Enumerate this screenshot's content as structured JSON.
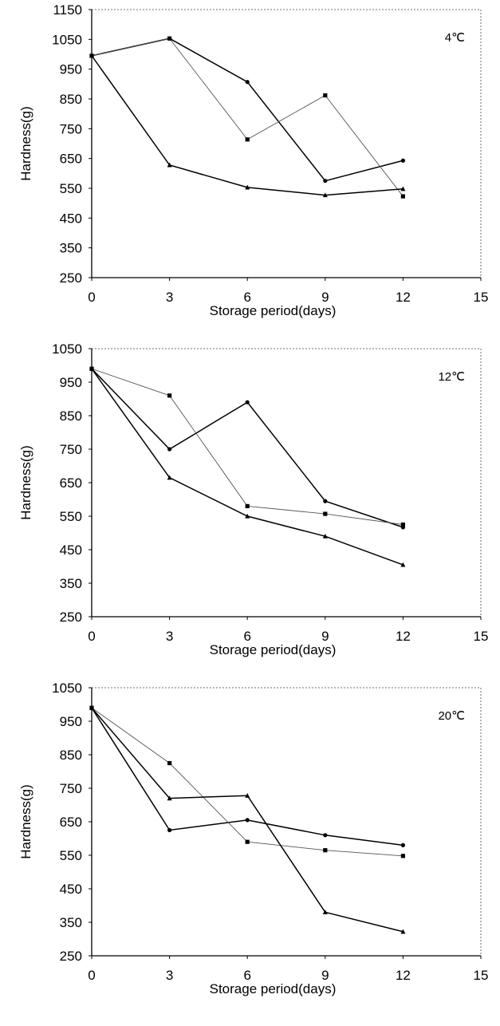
{
  "chart_data": [
    {
      "type": "line",
      "title": "",
      "annotation": "4℃",
      "xlabel": "Storage period(days)",
      "ylabel": "Hardness(g)",
      "xlim": [
        0,
        15
      ],
      "ylim": [
        250,
        1150
      ],
      "x_ticks": [
        "0",
        "3",
        "6",
        "9",
        "12",
        "15"
      ],
      "y_ticks": [
        "250",
        "350",
        "450",
        "550",
        "650",
        "750",
        "850",
        "950",
        "1050",
        "1150"
      ],
      "grid": false,
      "x": [
        0,
        3,
        6,
        9,
        12
      ],
      "series": [
        {
          "marker": "circle",
          "style": "solid",
          "values": [
            995,
            1053,
            907,
            575,
            643
          ]
        },
        {
          "marker": "square",
          "style": "thin",
          "values": [
            995,
            1053,
            714,
            862,
            523
          ]
        },
        {
          "marker": "triangle",
          "style": "solid",
          "values": [
            995,
            628,
            553,
            527,
            548
          ]
        }
      ]
    },
    {
      "type": "line",
      "title": "",
      "annotation": "12℃",
      "xlabel": "Storage period(days)",
      "ylabel": "Hardness(g)",
      "xlim": [
        0,
        15
      ],
      "ylim": [
        250,
        1050
      ],
      "x_ticks": [
        "0",
        "3",
        "6",
        "9",
        "12",
        "15"
      ],
      "y_ticks": [
        "250",
        "350",
        "450",
        "550",
        "650",
        "750",
        "850",
        "950",
        "1050"
      ],
      "grid": false,
      "x": [
        0,
        3,
        6,
        9,
        12
      ],
      "series": [
        {
          "marker": "circle",
          "style": "solid",
          "values": [
            990,
            750,
            890,
            595,
            517
          ]
        },
        {
          "marker": "square",
          "style": "thin",
          "values": [
            990,
            910,
            580,
            557,
            525
          ]
        },
        {
          "marker": "triangle",
          "style": "solid",
          "values": [
            990,
            665,
            550,
            490,
            405
          ]
        }
      ]
    },
    {
      "type": "line",
      "title": "",
      "annotation": "20℃",
      "xlabel": "Storage period(days)",
      "ylabel": "Hardness(g)",
      "xlim": [
        0,
        15
      ],
      "ylim": [
        250,
        1050
      ],
      "x_ticks": [
        "0",
        "3",
        "6",
        "9",
        "12",
        "15"
      ],
      "y_ticks": [
        "250",
        "350",
        "450",
        "550",
        "650",
        "750",
        "850",
        "950",
        "1050"
      ],
      "grid": false,
      "x": [
        0,
        3,
        6,
        9,
        12
      ],
      "series": [
        {
          "marker": "circle",
          "style": "solid",
          "values": [
            990,
            625,
            655,
            610,
            580
          ]
        },
        {
          "marker": "square",
          "style": "thin",
          "values": [
            990,
            825,
            590,
            565,
            548
          ]
        },
        {
          "marker": "triangle",
          "style": "solid",
          "values": [
            990,
            720,
            728,
            380,
            322
          ]
        }
      ]
    }
  ]
}
